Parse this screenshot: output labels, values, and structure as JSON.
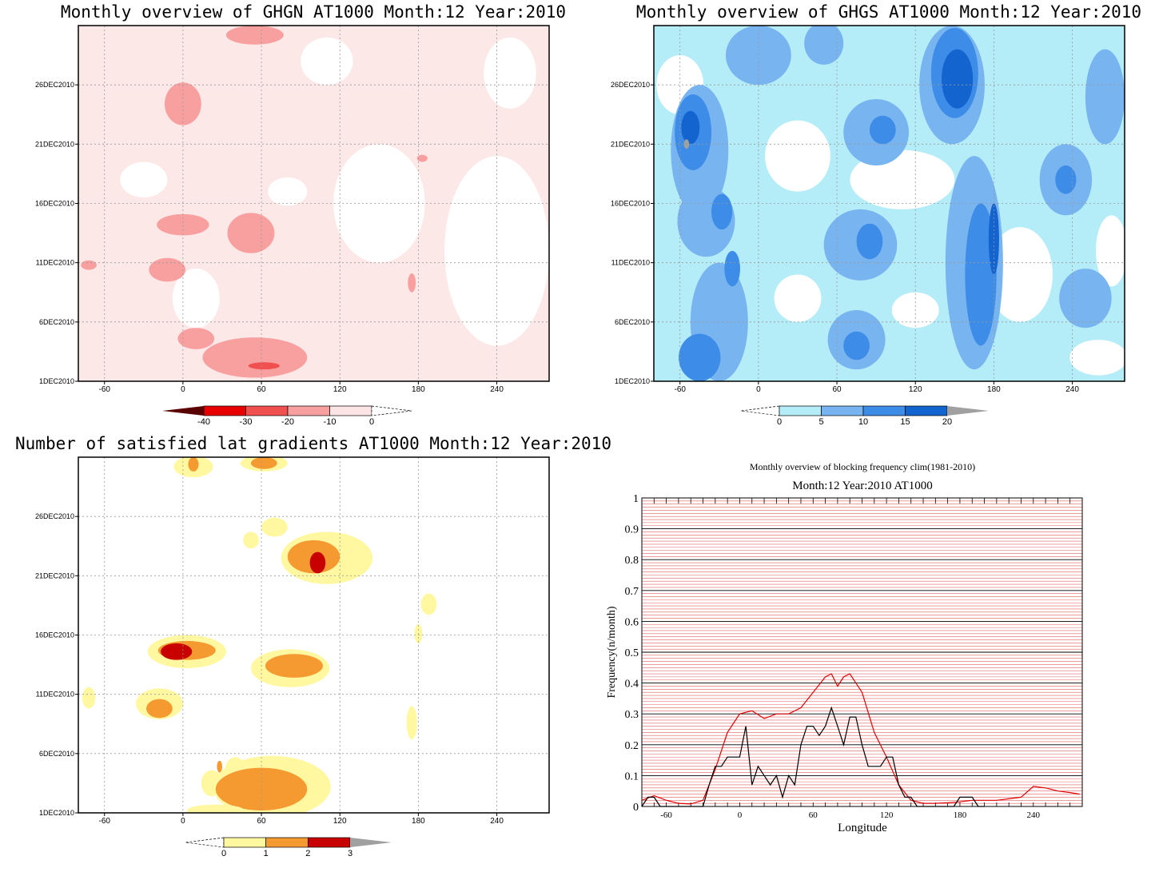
{
  "chart_data": [
    {
      "type": "heatmap",
      "title": "Monthly overview of GHGN AT1000 Month:12 Year:2010",
      "x_ticks": [
        "-60",
        "0",
        "60",
        "120",
        "180",
        "240"
      ],
      "x_tick_values": [
        -60,
        0,
        60,
        120,
        180,
        240
      ],
      "xlim": [
        -80,
        280
      ],
      "y_ticks": [
        "1DEC2010",
        "6DEC2010",
        "11DEC2010",
        "16DEC2010",
        "21DEC2010",
        "26DEC2010"
      ],
      "y_tick_values": [
        1,
        6,
        11,
        16,
        21,
        26
      ],
      "ylim": [
        1,
        31
      ],
      "grid": true,
      "colorbar": {
        "labels": [
          "-40",
          "-30",
          "-20",
          "-10",
          "0"
        ],
        "levels": [
          -40,
          -30,
          -20,
          -10,
          0
        ],
        "colors": [
          "#5a0000",
          "#e80000",
          "#f05050",
          "#f8a0a0",
          "#fde4e4"
        ]
      },
      "regions": [
        {
          "level": -10,
          "lon": 0,
          "day": 24.4,
          "rlon": 14,
          "rday": 1.8
        },
        {
          "level": -10,
          "lon": 55,
          "day": 30.2,
          "rlon": 22,
          "rday": 0.8
        },
        {
          "level": -10,
          "lon": 0,
          "day": 14.2,
          "rlon": 20,
          "rday": 0.9
        },
        {
          "level": -10,
          "lon": 52,
          "day": 13.5,
          "rlon": 18,
          "rday": 1.7
        },
        {
          "level": -10,
          "lon": -12,
          "day": 10.4,
          "rlon": 14,
          "rday": 1.0
        },
        {
          "level": -10,
          "lon": -72,
          "day": 10.8,
          "rlon": 6,
          "rday": 0.4
        },
        {
          "level": -10,
          "lon": 10,
          "day": 4.6,
          "rlon": 14,
          "rday": 0.9
        },
        {
          "level": -10,
          "lon": 55,
          "day": 3.0,
          "rlon": 40,
          "rday": 1.7
        },
        {
          "level": -10,
          "lon": 175,
          "day": 9.3,
          "rlon": 3,
          "rday": 0.8
        },
        {
          "level": -10,
          "lon": 183,
          "day": 19.8,
          "rlon": 4,
          "rday": 0.3
        },
        {
          "level": -20,
          "lon": 62,
          "day": 2.3,
          "rlon": 12,
          "rday": 0.3
        }
      ]
    },
    {
      "type": "heatmap",
      "title": "Monthly overview of GHGS AT1000 Month:12 Year:2010",
      "x_ticks": [
        "-60",
        "0",
        "60",
        "120",
        "180",
        "240"
      ],
      "x_tick_values": [
        -60,
        0,
        60,
        120,
        180,
        240
      ],
      "xlim": [
        -80,
        280
      ],
      "y_ticks": [
        "1DEC2010",
        "6DEC2010",
        "11DEC2010",
        "16DEC2010",
        "21DEC2010",
        "26DEC2010"
      ],
      "y_tick_values": [
        1,
        6,
        11,
        16,
        21,
        26
      ],
      "ylim": [
        1,
        31
      ],
      "grid": true,
      "colorbar": {
        "labels": [
          "0",
          "5",
          "10",
          "15",
          "20"
        ],
        "levels": [
          0,
          5,
          10,
          15,
          20
        ],
        "colors": [
          "#b4ecf8",
          "#78b4f0",
          "#3c8ce8",
          "#1464d0",
          "#a0a0a0"
        ]
      },
      "regions": [
        {
          "level": 5,
          "lon": -45,
          "day": 20.5,
          "rlon": 22,
          "rday": 5.5
        },
        {
          "level": 10,
          "lon": -50,
          "day": 22.0,
          "rlon": 14,
          "rday": 3.2
        },
        {
          "level": 15,
          "lon": -52,
          "day": 22.4,
          "rlon": 7,
          "rday": 1.4
        },
        {
          "level": 20,
          "lon": -55,
          "day": 21.0,
          "rlon": 2,
          "rday": 0.4
        },
        {
          "level": 5,
          "lon": -40,
          "day": 14.5,
          "rlon": 22,
          "rday": 3.0
        },
        {
          "level": 10,
          "lon": -28,
          "day": 15.3,
          "rlon": 8,
          "rday": 1.5
        },
        {
          "level": 5,
          "lon": -30,
          "day": 6.0,
          "rlon": 22,
          "rday": 5.0
        },
        {
          "level": 10,
          "lon": -45,
          "day": 3.0,
          "rlon": 16,
          "rday": 2.0
        },
        {
          "level": 10,
          "lon": -20,
          "day": 10.5,
          "rlon": 6,
          "rday": 1.5
        },
        {
          "level": 5,
          "lon": 50,
          "day": 29.5,
          "rlon": 15,
          "rday": 1.8
        },
        {
          "level": 5,
          "lon": 90,
          "day": 22.0,
          "rlon": 25,
          "rday": 2.8
        },
        {
          "level": 10,
          "lon": 95,
          "day": 22.2,
          "rlon": 10,
          "rday": 1.2
        },
        {
          "level": 5,
          "lon": 78,
          "day": 12.5,
          "rlon": 28,
          "rday": 3.0
        },
        {
          "level": 10,
          "lon": 85,
          "day": 12.8,
          "rlon": 10,
          "rday": 1.5
        },
        {
          "level": 5,
          "lon": 75,
          "day": 4.5,
          "rlon": 22,
          "rday": 2.5
        },
        {
          "level": 10,
          "lon": 75,
          "day": 4.0,
          "rlon": 10,
          "rday": 1.2
        },
        {
          "level": 5,
          "lon": 148,
          "day": 26.0,
          "rlon": 25,
          "rday": 5.0
        },
        {
          "level": 10,
          "lon": 150,
          "day": 27.0,
          "rlon": 18,
          "rday": 3.8
        },
        {
          "level": 15,
          "lon": 152,
          "day": 26.5,
          "rlon": 12,
          "rday": 2.5
        },
        {
          "level": 5,
          "lon": 165,
          "day": 11.0,
          "rlon": 22,
          "rday": 9.0
        },
        {
          "level": 10,
          "lon": 170,
          "day": 10.0,
          "rlon": 12,
          "rday": 6.0
        },
        {
          "level": 15,
          "lon": 180,
          "day": 13.0,
          "rlon": 4,
          "rday": 3.0
        },
        {
          "level": 5,
          "lon": 235,
          "day": 18.0,
          "rlon": 20,
          "rday": 3.0
        },
        {
          "level": 10,
          "lon": 235,
          "day": 18.0,
          "rlon": 8,
          "rday": 1.2
        },
        {
          "level": 5,
          "lon": 265,
          "day": 25.0,
          "rlon": 15,
          "rday": 4.0
        },
        {
          "level": 5,
          "lon": 250,
          "day": 8.0,
          "rlon": 20,
          "rday": 2.5
        },
        {
          "level": 5,
          "lon": 0,
          "day": 28.5,
          "rlon": 25,
          "rday": 2.5
        }
      ]
    },
    {
      "type": "heatmap",
      "title": "Number of satisfied lat gradients AT1000 Month:12 Year:2010",
      "x_ticks": [
        "-60",
        "0",
        "60",
        "120",
        "180",
        "240"
      ],
      "x_tick_values": [
        -60,
        0,
        60,
        120,
        180,
        240
      ],
      "xlim": [
        -80,
        280
      ],
      "y_ticks": [
        "1DEC2010",
        "6DEC2010",
        "11DEC2010",
        "16DEC2010",
        "21DEC2010",
        "26DEC2010"
      ],
      "y_tick_values": [
        1,
        6,
        11,
        16,
        21,
        26
      ],
      "ylim": [
        1,
        31
      ],
      "grid": true,
      "colorbar": {
        "labels": [
          "0",
          "1",
          "2",
          "3"
        ],
        "levels": [
          0,
          1,
          2,
          3
        ],
        "colors": [
          "#fff8a0",
          "#f59a30",
          "#c80000",
          "#a0a0a0"
        ]
      },
      "regions": [
        {
          "level": 0,
          "lon": 8,
          "day": 30.2,
          "rlon": 15,
          "rday": 0.9
        },
        {
          "level": 1,
          "lon": 8,
          "day": 30.4,
          "rlon": 4,
          "rday": 0.6
        },
        {
          "level": 0,
          "lon": 62,
          "day": 30.5,
          "rlon": 18,
          "rday": 0.7
        },
        {
          "level": 1,
          "lon": 62,
          "day": 30.5,
          "rlon": 10,
          "rday": 0.5
        },
        {
          "level": 0,
          "lon": 70,
          "day": 25.1,
          "rlon": 10,
          "rday": 0.8
        },
        {
          "level": 0,
          "lon": 52,
          "day": 24.0,
          "rlon": 6,
          "rday": 0.7
        },
        {
          "level": 0,
          "lon": 110,
          "day": 22.5,
          "rlon": 35,
          "rday": 2.2
        },
        {
          "level": 1,
          "lon": 100,
          "day": 22.6,
          "rlon": 20,
          "rday": 1.4
        },
        {
          "level": 2,
          "lon": 103,
          "day": 22.1,
          "rlon": 6,
          "rday": 0.9
        },
        {
          "level": 0,
          "lon": 188,
          "day": 18.6,
          "rlon": 6,
          "rday": 0.9
        },
        {
          "level": 0,
          "lon": 180,
          "day": 16.1,
          "rlon": 3,
          "rday": 0.8
        },
        {
          "level": 0,
          "lon": 3,
          "day": 14.6,
          "rlon": 30,
          "rday": 1.4
        },
        {
          "level": 1,
          "lon": 3,
          "day": 14.7,
          "rlon": 22,
          "rday": 0.8
        },
        {
          "level": 2,
          "lon": -5,
          "day": 14.6,
          "rlon": 12,
          "rday": 0.7
        },
        {
          "level": 0,
          "lon": 82,
          "day": 13.2,
          "rlon": 30,
          "rday": 1.6
        },
        {
          "level": 1,
          "lon": 85,
          "day": 13.4,
          "rlon": 22,
          "rday": 1.0
        },
        {
          "level": 0,
          "lon": -18,
          "day": 10.2,
          "rlon": 18,
          "rday": 1.3
        },
        {
          "level": 1,
          "lon": -18,
          "day": 9.8,
          "rlon": 10,
          "rday": 0.8
        },
        {
          "level": 0,
          "lon": -72,
          "day": 10.7,
          "rlon": 5,
          "rday": 0.9
        },
        {
          "level": 0,
          "lon": 175,
          "day": 8.6,
          "rlon": 4,
          "rday": 1.4
        },
        {
          "level": 0,
          "lon": 22,
          "day": 3.5,
          "rlon": 8,
          "rday": 1.1
        },
        {
          "level": 0,
          "lon": 40,
          "day": 4.5,
          "rlon": 8,
          "rday": 1.2
        },
        {
          "level": 1,
          "lon": 28,
          "day": 4.9,
          "rlon": 2,
          "rday": 0.5
        },
        {
          "level": 0,
          "lon": 68,
          "day": 3.2,
          "rlon": 45,
          "rday": 2.6
        },
        {
          "level": 1,
          "lon": 60,
          "day": 3.0,
          "rlon": 35,
          "rday": 1.8
        },
        {
          "level": 0,
          "lon": 25,
          "day": 1.2,
          "rlon": 22,
          "rday": 0.5
        }
      ]
    },
    {
      "type": "line",
      "title": "Monthly overview of blocking frequency clim(1981-2010)",
      "subtitle": "Month:12 Year:2010  AT1000",
      "xlabel": "Longitude",
      "ylabel": "Frequency(n/month)",
      "x_ticks": [
        "-60",
        "0",
        "60",
        "120",
        "180",
        "240"
      ],
      "x_tick_values": [
        -60,
        0,
        60,
        120,
        180,
        240
      ],
      "y_ticks": [
        "0",
        "0.1",
        "0.2",
        "0.3",
        "0.4",
        "0.5",
        "0.6",
        "0.7",
        "0.8",
        "0.9",
        "1"
      ],
      "xlim": [
        -80,
        280
      ],
      "ylim": [
        0,
        1
      ],
      "grid": true,
      "series": [
        {
          "color": "#e00000",
          "x": [
            -80,
            -70,
            -60,
            -50,
            -40,
            -30,
            -20,
            -10,
            0,
            10,
            20,
            30,
            40,
            50,
            60,
            70,
            75,
            80,
            85,
            90,
            100,
            110,
            120,
            130,
            140,
            150,
            160,
            170,
            180,
            190,
            200,
            210,
            220,
            230,
            240,
            250,
            260,
            270,
            278
          ],
          "y": [
            0.02,
            0.035,
            0.02,
            0.01,
            0.008,
            0.02,
            0.12,
            0.24,
            0.3,
            0.31,
            0.285,
            0.3,
            0.3,
            0.32,
            0.37,
            0.42,
            0.43,
            0.39,
            0.42,
            0.43,
            0.37,
            0.24,
            0.16,
            0.07,
            0.02,
            0.01,
            0.01,
            0.012,
            0.015,
            0.02,
            0.02,
            0.02,
            0.025,
            0.03,
            0.065,
            0.06,
            0.05,
            0.045,
            0.04
          ]
        },
        {
          "color": "#000000",
          "x": [
            -80,
            -75,
            -70,
            -65,
            -60,
            -55,
            -50,
            -45,
            -40,
            -35,
            -30,
            -25,
            -20,
            -15,
            -10,
            -5,
            0,
            5,
            10,
            15,
            20,
            25,
            30,
            35,
            40,
            45,
            50,
            55,
            60,
            65,
            70,
            75,
            80,
            85,
            90,
            95,
            100,
            105,
            110,
            115,
            120,
            125,
            130,
            135,
            140,
            145,
            150,
            155,
            160,
            165,
            170,
            175,
            180,
            185,
            190,
            195,
            200
          ],
          "y": [
            0.0,
            0.03,
            0.03,
            0.0,
            0.0,
            0.0,
            0.0,
            0.0,
            0.0,
            0.0,
            0.0,
            0.07,
            0.13,
            0.13,
            0.16,
            0.16,
            0.16,
            0.26,
            0.07,
            0.13,
            0.1,
            0.07,
            0.1,
            0.03,
            0.1,
            0.07,
            0.2,
            0.26,
            0.26,
            0.23,
            0.26,
            0.32,
            0.26,
            0.2,
            0.29,
            0.29,
            0.2,
            0.13,
            0.13,
            0.13,
            0.16,
            0.16,
            0.07,
            0.03,
            0.03,
            0.0,
            0.0,
            0.0,
            0.0,
            0.0,
            0.0,
            0.0,
            0.03,
            0.03,
            0.03,
            0.0,
            0.0
          ]
        }
      ]
    }
  ]
}
